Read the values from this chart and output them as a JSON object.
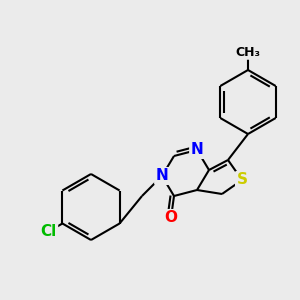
{
  "background_color": "#ebebeb",
  "atom_colors": {
    "N": "#0000ff",
    "O": "#ff0000",
    "S": "#cccc00",
    "Cl": "#00bb00",
    "C": "#000000"
  },
  "bond_color": "#000000",
  "bond_width": 1.5
}
